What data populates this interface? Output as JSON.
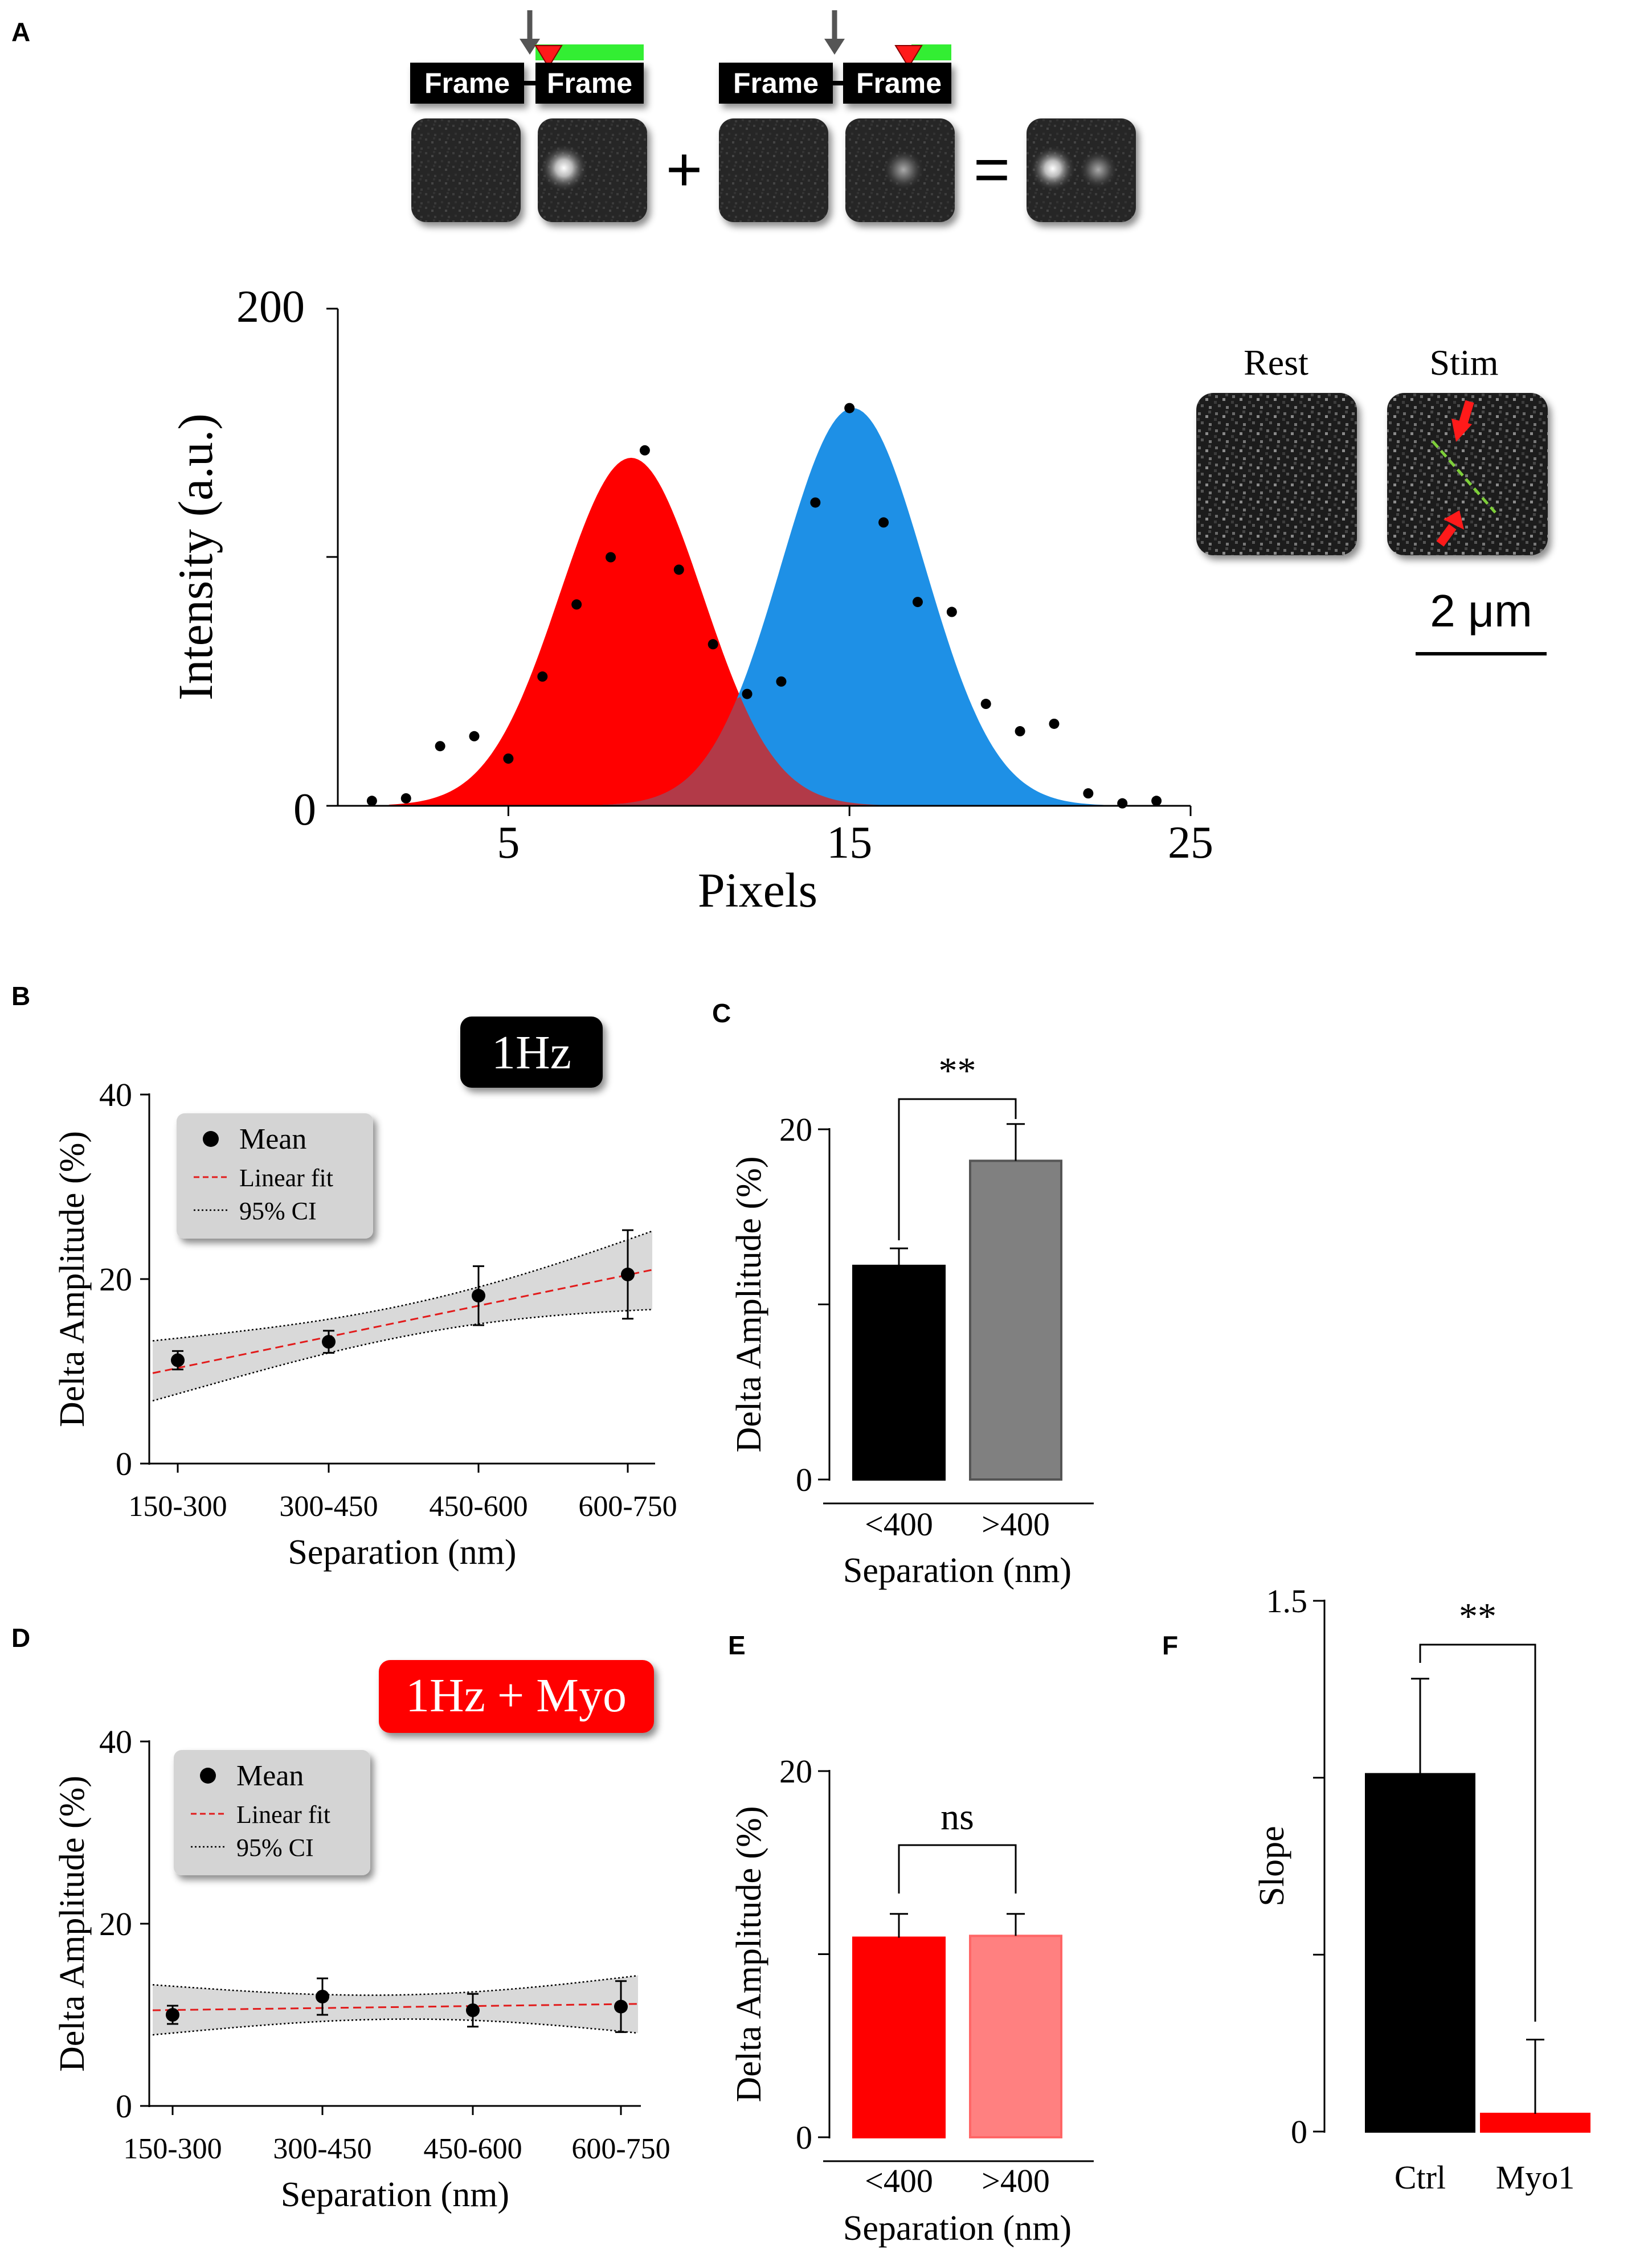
{
  "panel_labels": {
    "a": "A",
    "b": "B",
    "c": "C",
    "d": "D",
    "e": "E",
    "f": "F"
  },
  "panel_a": {
    "frame_label": "Frame",
    "plus_sign": "+",
    "equals_sign": "=",
    "rest_label": "Rest",
    "stim_label": "Stim",
    "scale_bar_label": "2 μm"
  },
  "colors": {
    "red": "#ff0000",
    "blue": "#1e90e6",
    "overlap": "#b23a48",
    "black_bar": "#000000",
    "gray_bar": "#808080",
    "light_red": "#ff8080",
    "green_bar": "#33ee33",
    "ci_band": "#d9d9d9"
  },
  "badges": {
    "b": "1Hz",
    "d": "1Hz + Myo"
  },
  "legend": {
    "mean": "Mean",
    "fit": "Linear fit",
    "ci": "95% CI"
  },
  "chart_data": [
    {
      "id": "A",
      "type": "scatter",
      "xlabel": "Pixels",
      "ylabel": "Intensity (a.u.)",
      "xlim": [
        0,
        25
      ],
      "ylim": [
        0,
        200
      ],
      "xticks": [
        5,
        15,
        25
      ],
      "xticklabels": [
        "5",
        "15",
        "25"
      ],
      "yticks": [
        0,
        100,
        200
      ],
      "yticklabels": [
        "0",
        "",
        "200"
      ],
      "gaussians": [
        {
          "name": "red peak",
          "amplitude": 140,
          "center": 8.6,
          "sigma": 2.1,
          "color": "red"
        },
        {
          "name": "blue peak",
          "amplitude": 160,
          "center": 15.1,
          "sigma": 2.1,
          "color": "blue"
        }
      ],
      "points": {
        "x": [
          1,
          2,
          3,
          4,
          5,
          6,
          7,
          8,
          9,
          10,
          11,
          12,
          13,
          14,
          15,
          16,
          17,
          18,
          19,
          20,
          21,
          22,
          23,
          24
        ],
        "y": [
          2,
          3,
          24,
          28,
          19,
          52,
          81,
          100,
          143,
          95,
          65,
          45,
          50,
          122,
          160,
          114,
          82,
          78,
          41,
          30,
          33,
          5,
          1,
          2
        ]
      }
    },
    {
      "id": "B",
      "type": "scatter",
      "xlabel": "Separation (nm)",
      "ylabel": "Delta Amplitude (%)",
      "categories": [
        "150-300",
        "300-450",
        "450-600",
        "600-750"
      ],
      "ylim": [
        0,
        40
      ],
      "yticks": [
        0,
        20,
        40
      ],
      "means": [
        11.2,
        13.2,
        18.2,
        20.5
      ],
      "errors": [
        1.0,
        1.2,
        3.2,
        4.8
      ],
      "fit": {
        "start": 9.8,
        "end": 21.0
      },
      "ci_upper": {
        "start": 13.3,
        "end": 25.2
      },
      "ci_lower": {
        "start": 6.8,
        "end": 16.7
      }
    },
    {
      "id": "C",
      "type": "bar",
      "xlabel": "Separation (nm)",
      "ylabel": "Delta Amplitude (%)",
      "categories": [
        "<400",
        ">400"
      ],
      "values": [
        12.2,
        18.2
      ],
      "errors": [
        1.0,
        2.1
      ],
      "ylim": [
        0,
        20
      ],
      "yticks": [
        0,
        10,
        20
      ],
      "yticklabels": [
        "0",
        "",
        "20"
      ],
      "significance": "**"
    },
    {
      "id": "D",
      "type": "scatter",
      "xlabel": "Separation (nm)",
      "ylabel": "Delta Amplitude (%)",
      "categories": [
        "150-300",
        "300-450",
        "450-600",
        "600-750"
      ],
      "ylim": [
        0,
        40
      ],
      "yticks": [
        0,
        20,
        40
      ],
      "means": [
        10.0,
        12.0,
        10.5,
        10.9
      ],
      "errors": [
        1.0,
        2.0,
        1.8,
        2.8
      ],
      "fit": {
        "start": 10.5,
        "end": 11.2
      },
      "ci_upper": {
        "start": 13.3,
        "end": 14.3
      },
      "ci_lower": {
        "start": 7.8,
        "end": 8.0
      }
    },
    {
      "id": "E",
      "type": "bar",
      "xlabel": "Separation (nm)",
      "ylabel": "Delta Amplitude (%)",
      "categories": [
        "<400",
        ">400"
      ],
      "values": [
        10.9,
        11.0
      ],
      "errors": [
        1.3,
        1.2
      ],
      "ylim": [
        0,
        20
      ],
      "yticks": [
        0,
        10,
        20
      ],
      "yticklabels": [
        "0",
        "",
        "20"
      ],
      "significance": "ns"
    },
    {
      "id": "F",
      "type": "bar",
      "xlabel": "",
      "ylabel": "Slope",
      "categories": [
        "Ctrl",
        "Myo1"
      ],
      "values": [
        1.01,
        0.05
      ],
      "errors": [
        0.27,
        0.21
      ],
      "ylim": [
        0,
        1.5
      ],
      "yticks": [
        0,
        0.5,
        1.0,
        1.5
      ],
      "yticklabels": [
        "0",
        "",
        "",
        "1.5"
      ],
      "significance": "**"
    }
  ]
}
